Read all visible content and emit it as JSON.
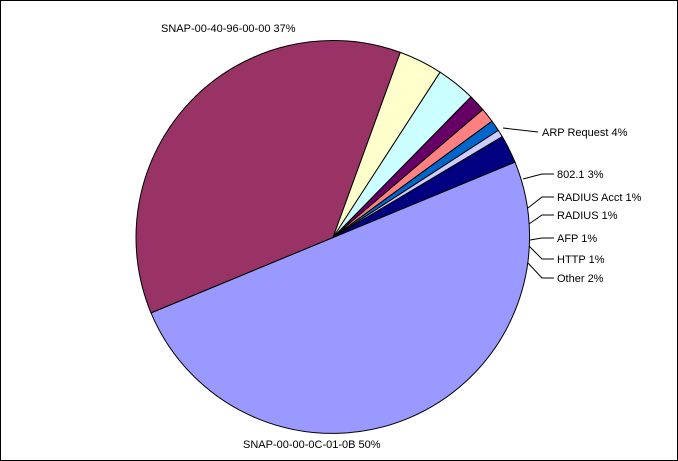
{
  "chart_data": {
    "type": "pie",
    "title": "",
    "slices": [
      {
        "label": "SNAP-00-00-0C-01-0B 50%",
        "value": 50.0,
        "color": "#9999FF"
      },
      {
        "label": "SNAP-00-40-96-00-00 37%",
        "value": 36.8,
        "color": "#993366"
      },
      {
        "label": "ARP Request 4%",
        "value": 3.6,
        "color": "#FFFFCC"
      },
      {
        "label": "802.1 3%",
        "value": 3.2,
        "color": "#CCFFFF"
      },
      {
        "label": "RADIUS Acct 1%",
        "value": 1.4,
        "color": "#660066"
      },
      {
        "label": "RADIUS 1%",
        "value": 1.2,
        "color": "#FF8080"
      },
      {
        "label": "AFP 1%",
        "value": 0.9,
        "color": "#0066CC"
      },
      {
        "label": "HTTP 1%",
        "value": 0.6,
        "color": "#CCCCFF"
      },
      {
        "label": "Other 2%",
        "value": 2.3,
        "color": "#000080"
      }
    ],
    "legend": "none"
  }
}
